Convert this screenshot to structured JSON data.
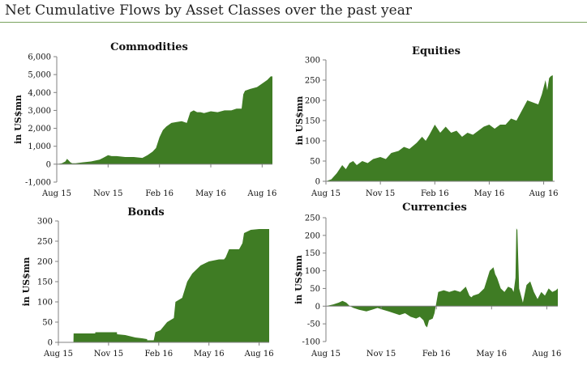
{
  "page": {
    "title": "Net Cumulative Flows by Asset Classes over the past year"
  },
  "colors": {
    "fill": "#3f7c24",
    "axis": "#808080",
    "title_rule": "#7aa35e"
  },
  "chart_data": [
    {
      "id": "commodities",
      "type": "area",
      "title": "Commodities",
      "ylabel": "in US$mn",
      "ylim": [
        -1000,
        6000
      ],
      "yticks": [
        -1000,
        0,
        1000,
        2000,
        3000,
        4000,
        5000,
        6000
      ],
      "ytick_labels": [
        "-1,000",
        "0",
        "1,000",
        "2,000",
        "3,000",
        "4,000",
        "5,000",
        "6,000"
      ],
      "xlim": [
        0,
        12.6
      ],
      "xticks": [
        0,
        3,
        6,
        9,
        12
      ],
      "xtick_labels": [
        "Aug 15",
        "Nov 15",
        "Feb 16",
        "May 16",
        "Aug 16"
      ],
      "series": [
        {
          "name": "Commodities",
          "x": [
            0,
            0.3,
            0.5,
            0.6,
            0.7,
            0.8,
            0.9,
            1.1,
            1.5,
            2.0,
            2.5,
            2.8,
            3.0,
            3.2,
            3.5,
            4.0,
            4.5,
            5.0,
            5.3,
            5.6,
            5.8,
            6.0,
            6.2,
            6.4,
            6.7,
            7.0,
            7.3,
            7.6,
            7.8,
            8.0,
            8.2,
            8.4,
            8.6,
            9.0,
            9.4,
            9.8,
            10.2,
            10.5,
            10.8,
            10.9,
            11.0,
            11.3,
            11.7,
            12.0,
            12.3,
            12.5,
            12.6
          ],
          "y": [
            0,
            50,
            150,
            300,
            200,
            100,
            50,
            50,
            100,
            150,
            250,
            400,
            500,
            450,
            450,
            400,
            400,
            350,
            500,
            700,
            900,
            1500,
            1900,
            2100,
            2300,
            2350,
            2400,
            2300,
            2900,
            3000,
            2900,
            2900,
            2850,
            2950,
            2900,
            3000,
            3000,
            3100,
            3100,
            3900,
            4100,
            4200,
            4300,
            4500,
            4700,
            4900,
            4900
          ]
        }
      ]
    },
    {
      "id": "equities",
      "type": "area",
      "title": "Equities",
      "ylabel": "in US$mn",
      "ylim": [
        0,
        300
      ],
      "yticks": [
        0,
        50,
        100,
        150,
        200,
        250,
        300
      ],
      "ytick_labels": [
        "0",
        "50",
        "100",
        "150",
        "200",
        "250",
        "300"
      ],
      "xlim": [
        0,
        12.6
      ],
      "xticks": [
        0,
        3,
        6,
        9,
        12
      ],
      "xtick_labels": [
        "Aug 15",
        "Nov 15",
        "Feb 16",
        "May 16",
        "Aug 16"
      ],
      "series": [
        {
          "name": "Equities",
          "x": [
            0,
            0.3,
            0.6,
            0.9,
            1.1,
            1.3,
            1.5,
            1.7,
            2.0,
            2.3,
            2.6,
            3.0,
            3.3,
            3.6,
            4.0,
            4.3,
            4.6,
            5.0,
            5.3,
            5.5,
            5.7,
            6.0,
            6.3,
            6.6,
            6.9,
            7.2,
            7.5,
            7.8,
            8.1,
            8.4,
            8.7,
            9.0,
            9.3,
            9.6,
            9.9,
            10.2,
            10.5,
            10.8,
            11.1,
            11.4,
            11.7,
            11.9,
            12.1,
            12.2,
            12.3,
            12.4,
            12.5
          ],
          "y": [
            0,
            5,
            20,
            40,
            30,
            45,
            50,
            40,
            50,
            45,
            55,
            60,
            55,
            70,
            75,
            85,
            80,
            95,
            110,
            100,
            115,
            140,
            120,
            135,
            120,
            125,
            110,
            120,
            115,
            125,
            135,
            140,
            130,
            140,
            140,
            155,
            150,
            175,
            200,
            195,
            190,
            215,
            250,
            225,
            255,
            260,
            262
          ]
        }
      ]
    },
    {
      "id": "bonds",
      "type": "area",
      "title": "Bonds",
      "ylabel": "in US$mn",
      "ylim": [
        0,
        300
      ],
      "yticks": [
        0,
        50,
        100,
        150,
        200,
        250,
        300
      ],
      "ytick_labels": [
        "0",
        "50",
        "100",
        "150",
        "200",
        "250",
        "300"
      ],
      "xlim": [
        0,
        12.6
      ],
      "xticks": [
        0,
        3,
        6,
        9,
        12
      ],
      "xtick_labels": [
        "Aug 15",
        "Nov 15",
        "Feb 16",
        "May 16",
        "Aug 16"
      ],
      "series": [
        {
          "name": "Bonds",
          "x": [
            0.0,
            0.9,
            0.91,
            2.2,
            2.21,
            3.5,
            3.51,
            4.0,
            4.6,
            5.0,
            5.3,
            5.31,
            5.7,
            5.8,
            6.1,
            6.5,
            6.9,
            7.0,
            7.4,
            7.7,
            8.0,
            8.5,
            9.0,
            9.6,
            9.9,
            10.0,
            10.2,
            10.8,
            11.0,
            11.1,
            11.5,
            12.0,
            12.3,
            12.6
          ],
          "y": [
            0,
            0,
            22,
            22,
            25,
            25,
            20,
            18,
            12,
            10,
            8,
            5,
            5,
            25,
            30,
            50,
            60,
            100,
            110,
            150,
            170,
            190,
            200,
            205,
            205,
            210,
            230,
            230,
            245,
            270,
            278,
            280,
            280,
            280
          ]
        }
      ]
    },
    {
      "id": "currencies",
      "type": "area",
      "title": "Currencies",
      "ylabel": "in US$mn",
      "ylim": [
        -100,
        250
      ],
      "yticks": [
        -100,
        -50,
        0,
        50,
        100,
        150,
        200,
        250
      ],
      "ytick_labels": [
        "-100",
        "-50",
        "0",
        "50",
        "100",
        "150",
        "200",
        "250"
      ],
      "xlim": [
        0,
        12.6
      ],
      "xticks": [
        0,
        3,
        6,
        9,
        12
      ],
      "xtick_labels": [
        "Aug 15",
        "Nov 15",
        "Feb 16",
        "May 16",
        "Aug 16"
      ],
      "series": [
        {
          "name": "Currencies",
          "x": [
            0.0,
            0.4,
            0.7,
            0.9,
            1.1,
            1.3,
            1.5,
            1.8,
            2.2,
            2.5,
            2.8,
            3.1,
            3.4,
            3.7,
            4.0,
            4.3,
            4.6,
            4.9,
            5.1,
            5.3,
            5.4,
            5.5,
            5.6,
            5.8,
            5.9,
            6.1,
            6.4,
            6.7,
            7.0,
            7.3,
            7.6,
            7.8,
            7.9,
            8.0,
            8.3,
            8.6,
            8.9,
            9.1,
            9.2,
            9.3,
            9.5,
            9.7,
            9.9,
            10.1,
            10.2,
            10.3,
            10.35,
            10.4,
            10.5,
            10.7,
            10.9,
            11.1,
            11.3,
            11.5,
            11.7,
            11.9,
            12.1,
            12.3,
            12.5,
            12.6
          ],
          "y": [
            0,
            5,
            10,
            15,
            10,
            0,
            -5,
            -10,
            -15,
            -10,
            -5,
            -10,
            -15,
            -20,
            -25,
            -20,
            -30,
            -35,
            -30,
            -40,
            -55,
            -60,
            -40,
            -35,
            -20,
            40,
            45,
            40,
            45,
            40,
            55,
            30,
            25,
            30,
            35,
            50,
            100,
            110,
            90,
            80,
            50,
            40,
            55,
            50,
            40,
            80,
            220,
            215,
            50,
            10,
            60,
            70,
            40,
            20,
            40,
            30,
            50,
            40,
            45,
            50
          ]
        }
      ]
    }
  ]
}
